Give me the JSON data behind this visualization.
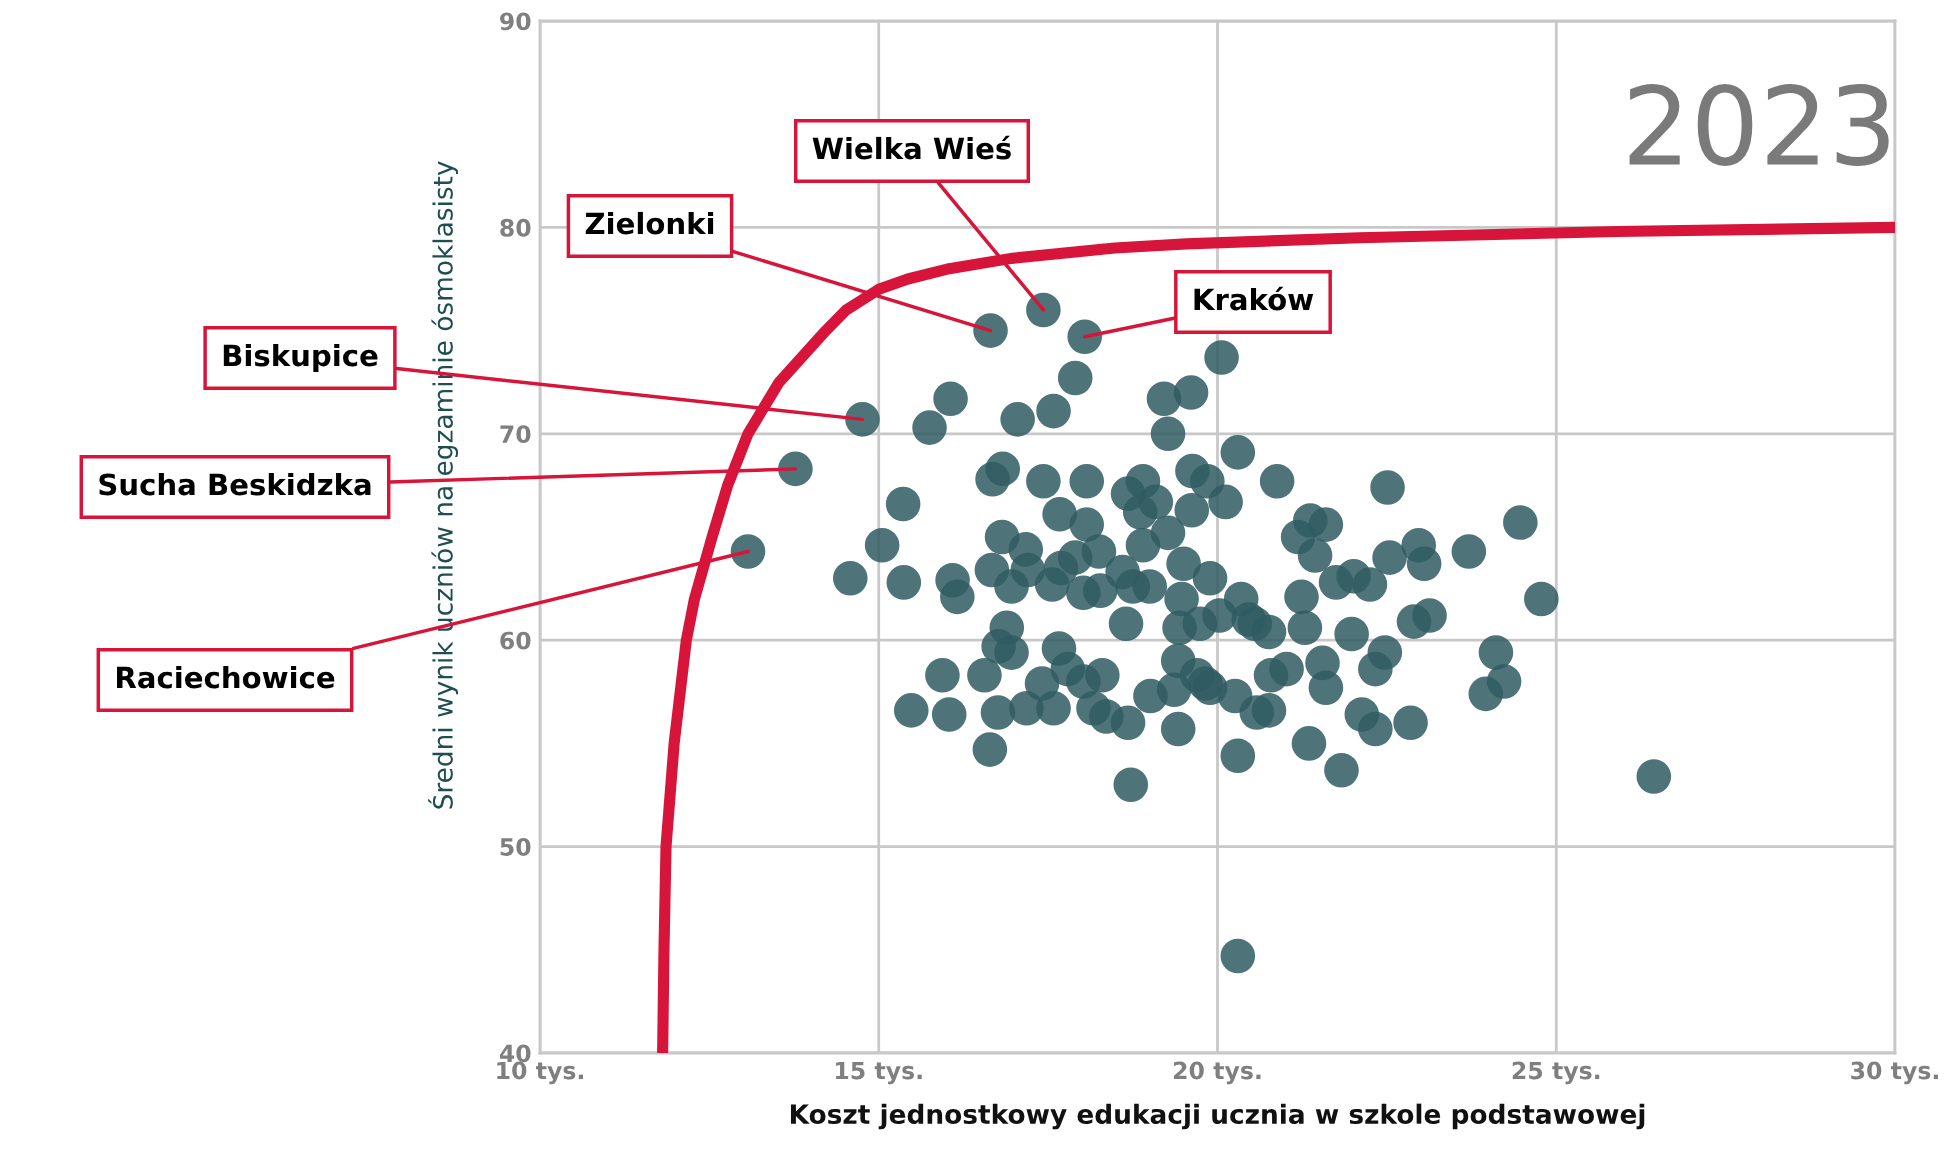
{
  "chart_data": {
    "type": "scatter",
    "xlabel": "Koszt jednostkowy edukacji ucznia w szkole podstawowej",
    "ylabel": "Średni wynik uczniów na egzaminie ósmoklasisty",
    "xlim": [
      10,
      30
    ],
    "xticks": [
      {
        "value": 10,
        "label": "10 tys."
      },
      {
        "value": 15,
        "label": "15 tys."
      },
      {
        "value": 20,
        "label": "20 tys."
      },
      {
        "value": 25,
        "label": "25 tys."
      },
      {
        "value": 30,
        "label": "30 tys."
      }
    ],
    "ylim": [
      40,
      90
    ],
    "yticks": [
      40,
      50,
      60,
      70,
      80,
      90
    ],
    "grid": true,
    "marker": "circle",
    "annotations": [
      "2023",
      {
        "text": "Raciechowice",
        "x": 13.07,
        "y": 64.3
      },
      {
        "text": "Sucha Beskidzka",
        "x": 13.77,
        "y": 68.3
      },
      {
        "text": "Biskupice",
        "x": 14.76,
        "y": 70.7
      },
      {
        "text": "Zielonki",
        "x": 16.65,
        "y": 75.0
      },
      {
        "text": "Wielka Wieś",
        "x": 17.43,
        "y": 76.0
      },
      {
        "text": "Kraków",
        "x": 18.04,
        "y": 74.7
      }
    ],
    "series": [
      {
        "color": "#2f5c62",
        "x": [
          13.07,
          13.77,
          14.76,
          14.58,
          15.05,
          15.36,
          15.37,
          15.48,
          15.75,
          16.06,
          16.04,
          15.94,
          16.09,
          16.16,
          16.65,
          17.43,
          18.04,
          17.9,
          17.58,
          17.05,
          16.83,
          16.68,
          17.43,
          18.07,
          16.82,
          16.67,
          17.17,
          17.2,
          16.96,
          16.89,
          16.77,
          16.96,
          16.56,
          16.76,
          16.64,
          17.18,
          17.58,
          17.41,
          17.66,
          17.79,
          17.67,
          17.69,
          17.56,
          17.9,
          18.07,
          18.02,
          18.27,
          18.25,
          18.3,
          18.17,
          18.36,
          18.02,
          18.68,
          18.72,
          18.65,
          18.6,
          18.75,
          18.68,
          18.9,
          19.09,
          18.86,
          18.9,
          19.0,
          19.27,
          19.21,
          19.61,
          19.27,
          19.63,
          19.62,
          19.85,
          20.12,
          20.06,
          20.3,
          20.88,
          19.5,
          19.47,
          19.44,
          19.74,
          19.42,
          19.7,
          19.82,
          19.36,
          19.01,
          19.42,
          19.89,
          20.35,
          20.46,
          20.55,
          20.76,
          20.26,
          20.3,
          20.79,
          21.02,
          20.76,
          20.58,
          20.3,
          21.19,
          21.37,
          21.6,
          21.44,
          21.24,
          21.29,
          21.55,
          21.6,
          21.35,
          21.83,
          21.75,
          22.01,
          22.25,
          21.98,
          22.13,
          22.33,
          22.33,
          22.47,
          22.54,
          22.51,
          22.97,
          23.05,
          22.9,
          23.13,
          22.85,
          23.71,
          24.11,
          24.23,
          23.96,
          24.47,
          24.78,
          26.44,
          20.03,
          19.89
        ],
        "values": [
          64.3,
          68.3,
          70.7,
          63.0,
          64.6,
          66.6,
          62.8,
          56.6,
          70.3,
          71.7,
          56.4,
          58.3,
          62.9,
          62.1,
          75.0,
          76.0,
          74.7,
          72.7,
          71.1,
          70.7,
          68.3,
          67.8,
          67.7,
          67.7,
          65.0,
          63.4,
          64.4,
          63.4,
          62.6,
          60.6,
          59.7,
          59.4,
          58.3,
          56.5,
          54.7,
          56.7,
          56.7,
          57.9,
          59.6,
          58.6,
          66.1,
          63.5,
          62.7,
          64.0,
          65.6,
          62.3,
          62.4,
          64.3,
          58.3,
          56.7,
          56.3,
          58.0,
          56.0,
          53.0,
          60.8,
          63.3,
          62.6,
          67.1,
          67.7,
          66.7,
          66.2,
          64.6,
          62.6,
          65.2,
          71.7,
          72.0,
          70.0,
          68.2,
          66.3,
          67.7,
          66.7,
          73.7,
          69.1,
          67.7,
          63.7,
          62.0,
          60.6,
          60.8,
          59.0,
          58.3,
          57.9,
          57.6,
          57.3,
          55.7,
          63.0,
          62.0,
          61.0,
          60.8,
          60.4,
          57.3,
          54.4,
          58.3,
          58.6,
          56.6,
          56.5,
          44.7,
          65.0,
          65.8,
          65.6,
          64.1,
          62.1,
          60.6,
          58.9,
          57.7,
          55.0,
          53.7,
          62.8,
          63.1,
          62.7,
          60.3,
          56.4,
          55.7,
          58.6,
          59.4,
          64.0,
          67.4,
          64.6,
          63.7,
          60.9,
          61.2,
          56.0,
          64.3,
          59.4,
          58.0,
          57.4,
          65.7,
          62.0,
          53.4,
          61.2,
          57.7
        ]
      },
      {
        "type": "line",
        "color": "#d7153a",
        "marker": "none",
        "x": [
          11.81,
          11.83,
          11.86,
          11.98,
          12.16,
          12.28,
          12.54,
          12.77,
          13.07,
          13.53,
          14.22,
          14.52,
          15.0,
          15.43,
          16.04,
          16.96,
          18.48,
          19.54,
          22.1,
          25.9,
          30
        ],
        "values": [
          40,
          45,
          50,
          55,
          60,
          62,
          65,
          67.5,
          70,
          72.5,
          75,
          76,
          77,
          77.5,
          78,
          78.5,
          79,
          79.2,
          79.5,
          79.8,
          80
        ]
      }
    ]
  }
}
